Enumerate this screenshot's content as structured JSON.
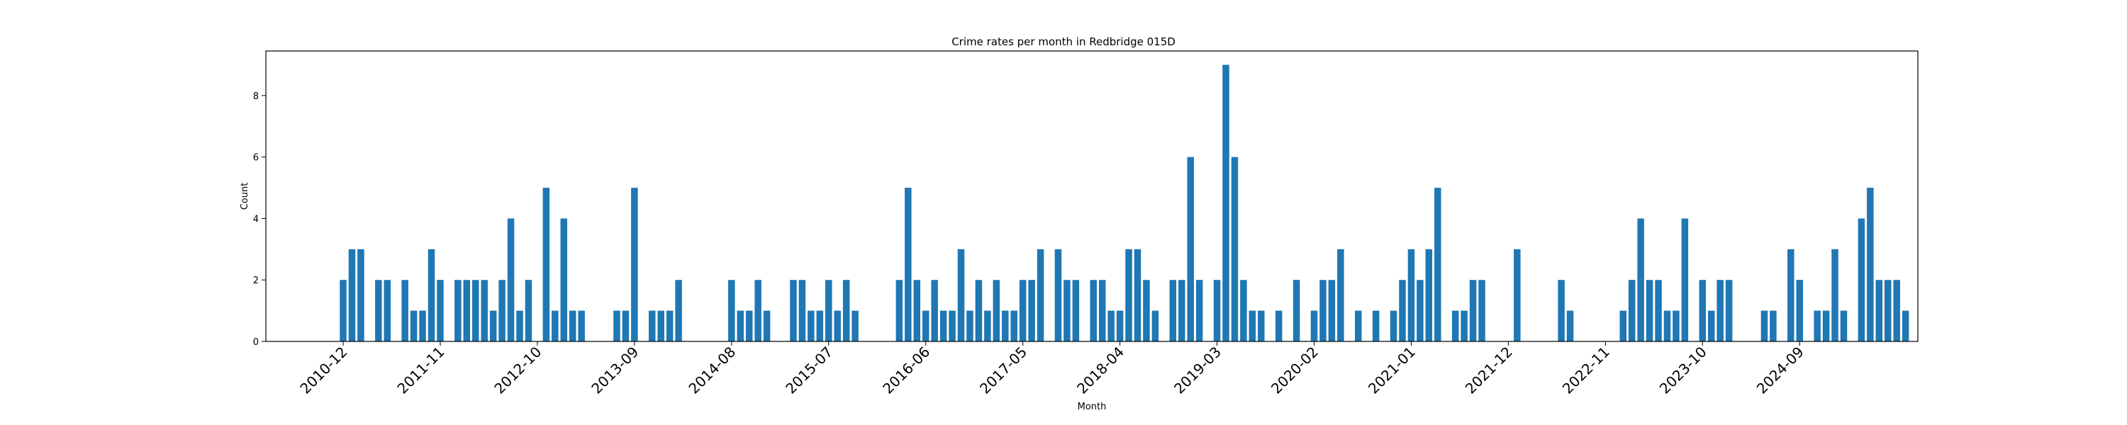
{
  "chart_data": {
    "type": "bar",
    "title": "Crime rates per month in Redbridge 015D",
    "xlabel": "Month",
    "ylabel": "Count",
    "ylim": [
      0,
      9.45
    ],
    "yticks": [
      0,
      2,
      4,
      6,
      8
    ],
    "x_tick_labels": [
      "2010-12",
      "2011-11",
      "2012-10",
      "2013-09",
      "2014-08",
      "2015-07",
      "2016-06",
      "2017-05",
      "2018-04",
      "2019-03",
      "2020-02",
      "2021-01",
      "2021-12",
      "2022-11",
      "2023-10",
      "2024-09"
    ],
    "bar_color": "#1f77b4",
    "series": [
      {
        "values": [
          2,
          3,
          3,
          0,
          2,
          2,
          0,
          2,
          1,
          1,
          3,
          2,
          0,
          2,
          2,
          2,
          2,
          1,
          2,
          4,
          1,
          2,
          0,
          5,
          1,
          4,
          1,
          1,
          0,
          0,
          0,
          1,
          1,
          5,
          0,
          1,
          1,
          1,
          2,
          0,
          0,
          0,
          0,
          0,
          2,
          1,
          1,
          2,
          1,
          0,
          0,
          2,
          2,
          1,
          1,
          2,
          1,
          2,
          1,
          0,
          0,
          0,
          0,
          2,
          5,
          2,
          1,
          2,
          1,
          1,
          3,
          1,
          2,
          1,
          2,
          1,
          1,
          2,
          2,
          3,
          0,
          3,
          2,
          2,
          0,
          2,
          2,
          1,
          1,
          3,
          3,
          2,
          1,
          0,
          2,
          2,
          6,
          2,
          0,
          2,
          9,
          6,
          2,
          1,
          1,
          0,
          1,
          0,
          2,
          0,
          1,
          2,
          2,
          3,
          0,
          1,
          0,
          1,
          0,
          1,
          2,
          3,
          2,
          3,
          5,
          0,
          1,
          1,
          2,
          2,
          0,
          0,
          0,
          3,
          0,
          0,
          0,
          0,
          2,
          1,
          0,
          0,
          0,
          0,
          0,
          1,
          2,
          4,
          2,
          2,
          1,
          1,
          4,
          0,
          2,
          1,
          2,
          2,
          0,
          0,
          0,
          1,
          1,
          0,
          3,
          2,
          0,
          1,
          1,
          3,
          1,
          0,
          4,
          5,
          2,
          2,
          2,
          1
        ]
      }
    ]
  }
}
